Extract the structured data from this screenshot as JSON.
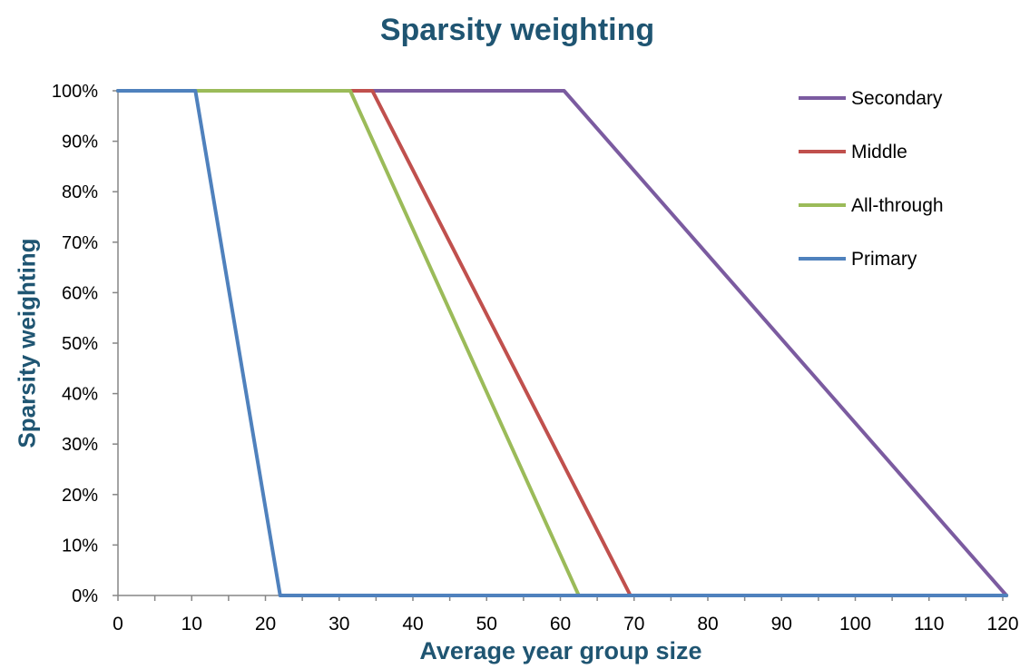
{
  "chart_data": {
    "type": "line",
    "title": "Sparsity weighting",
    "xlabel": "Average year group size",
    "ylabel": "Sparsity weighting",
    "xlim": [
      0,
      120
    ],
    "ylim": [
      0,
      100
    ],
    "x_ticks": [
      "0",
      "10",
      "20",
      "30",
      "40",
      "50",
      "60",
      "70",
      "80",
      "90",
      "100",
      "110",
      "120"
    ],
    "y_ticks": [
      "0%",
      "10%",
      "20%",
      "30%",
      "40%",
      "50%",
      "60%",
      "70%",
      "80%",
      "90%",
      "100%"
    ],
    "grid": false,
    "legend_position": "top-right",
    "series": [
      {
        "name": "Secondary",
        "color": "#7b5ba0",
        "x": [
          0,
          60.5,
          120.5
        ],
        "y": [
          100,
          100,
          0
        ]
      },
      {
        "name": "Middle",
        "color": "#c0504d",
        "x": [
          0,
          34.5,
          69.5,
          120.5
        ],
        "y": [
          100,
          100,
          0,
          0
        ]
      },
      {
        "name": "All-through",
        "color": "#9bbb59",
        "x": [
          0,
          31.5,
          62.5,
          120.5
        ],
        "y": [
          100,
          100,
          0,
          0
        ]
      },
      {
        "name": "Primary",
        "color": "#4f81bd",
        "x": [
          0,
          10.5,
          22,
          120.5
        ],
        "y": [
          100,
          100,
          0,
          0
        ]
      }
    ]
  }
}
